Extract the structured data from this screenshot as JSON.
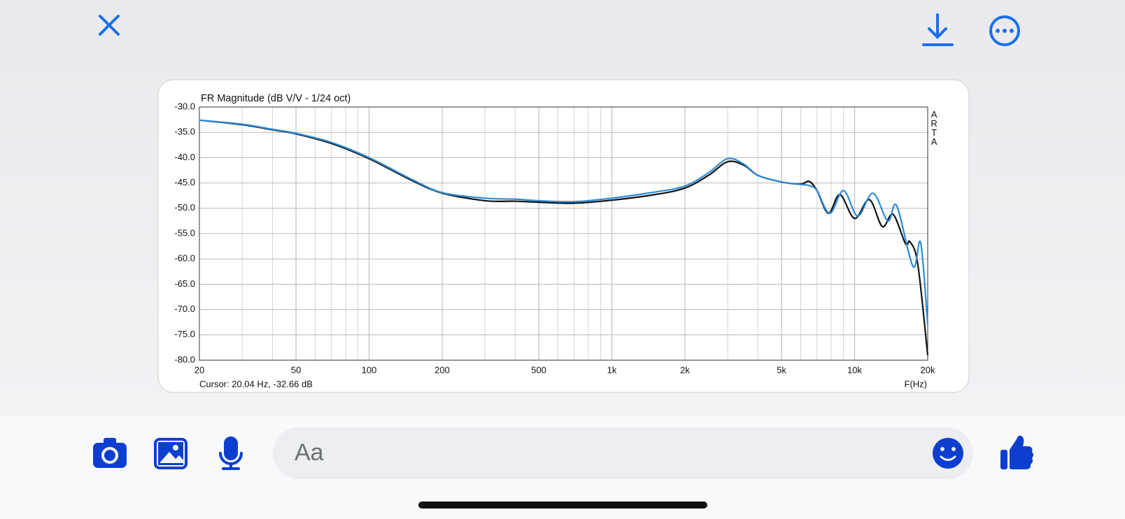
{
  "chart_data": {
    "type": "line",
    "title": "FR Magnitude (dB V/V - 1/24 oct)",
    "side_label": "ARTA",
    "cursor_label": "Cursor: 20.04 Hz, -32.66 dB",
    "x_label": "F(Hz)",
    "x_scale": "log",
    "grid": true,
    "xlim": [
      20,
      20000
    ],
    "ylim": [
      -80,
      -30
    ],
    "xticks": [
      20,
      50,
      100,
      200,
      500,
      {
        "value": 1000,
        "label": "1k"
      },
      {
        "value": 2000,
        "label": "2k"
      },
      {
        "value": 5000,
        "label": "5k"
      },
      {
        "value": 10000,
        "label": "10k"
      },
      {
        "value": 20000,
        "label": "20k"
      }
    ],
    "yticks": [
      {
        "value": -30,
        "label": "-30.0"
      },
      {
        "value": -35,
        "label": "-35.0"
      },
      {
        "value": -40,
        "label": "-40.0"
      },
      {
        "value": -45,
        "label": "-45.0"
      },
      {
        "value": -50,
        "label": "-50.0"
      },
      {
        "value": -55,
        "label": "-55.0"
      },
      {
        "value": -60,
        "label": "-60.0"
      },
      {
        "value": -65,
        "label": "-65.0"
      },
      {
        "value": -70,
        "label": "-70.0"
      },
      {
        "value": -75,
        "label": "-75.0"
      },
      {
        "value": -80,
        "label": "-80.0"
      }
    ],
    "series": [
      {
        "color": "#111111",
        "x": [
          20,
          30,
          40,
          50,
          70,
          100,
          150,
          200,
          300,
          400,
          500,
          700,
          1000,
          1500,
          2000,
          2500,
          3000,
          3500,
          4000,
          5000,
          6000,
          6500,
          7000,
          7800,
          8700,
          10000,
          11500,
          13000,
          14400,
          16200,
          16900,
          18200,
          20000
        ],
        "values": [
          -32.6,
          -33.5,
          -34.5,
          -35.3,
          -37.2,
          -40.2,
          -44.5,
          -47.0,
          -48.5,
          -48.6,
          -48.8,
          -49.0,
          -48.4,
          -47.3,
          -46.0,
          -43.5,
          -40.8,
          -41.5,
          -43.5,
          -44.8,
          -45.2,
          -44.7,
          -46.5,
          -51.0,
          -47.3,
          -52.0,
          -48.3,
          -53.6,
          -51.2,
          -57.0,
          -56.6,
          -61.0,
          -79.0
        ]
      },
      {
        "color": "#2b8ad8",
        "x": [
          20,
          30,
          40,
          50,
          70,
          100,
          150,
          200,
          300,
          400,
          500,
          700,
          1000,
          1500,
          2000,
          2500,
          3000,
          3500,
          4000,
          5000,
          6000,
          6500,
          7000,
          7900,
          9000,
          10300,
          11900,
          13700,
          14900,
          17400,
          18700,
          20000
        ],
        "values": [
          -32.6,
          -33.4,
          -34.4,
          -35.2,
          -37.0,
          -40.0,
          -44.3,
          -46.9,
          -48.0,
          -48.2,
          -48.5,
          -48.7,
          -48.0,
          -46.8,
          -45.6,
          -43.0,
          -40.2,
          -41.3,
          -43.5,
          -44.8,
          -45.3,
          -45.5,
          -46.5,
          -51.0,
          -46.5,
          -51.5,
          -47.0,
          -52.5,
          -49.5,
          -61.5,
          -56.8,
          -73.0
        ]
      }
    ]
  },
  "ui": {
    "input_placeholder": "Aa"
  }
}
